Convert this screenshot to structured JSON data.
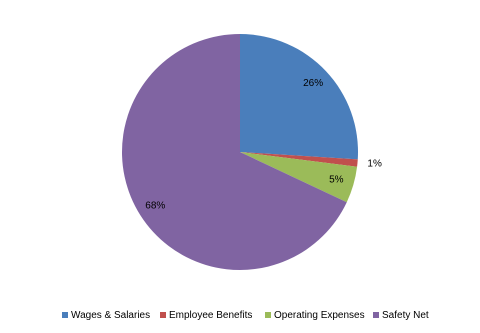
{
  "chart_data": {
    "type": "pie",
    "categories": [
      "Wages & Salaries",
      "Employee Benefits",
      "Operating Expenses",
      "Safety Net"
    ],
    "values": [
      26,
      1,
      5,
      68
    ],
    "value_labels": [
      "26%",
      "1%",
      "5%",
      "68%"
    ],
    "colors": [
      "#4a7ebb",
      "#c0504d",
      "#9bbb59",
      "#8064a2"
    ],
    "legend": "bottom"
  }
}
